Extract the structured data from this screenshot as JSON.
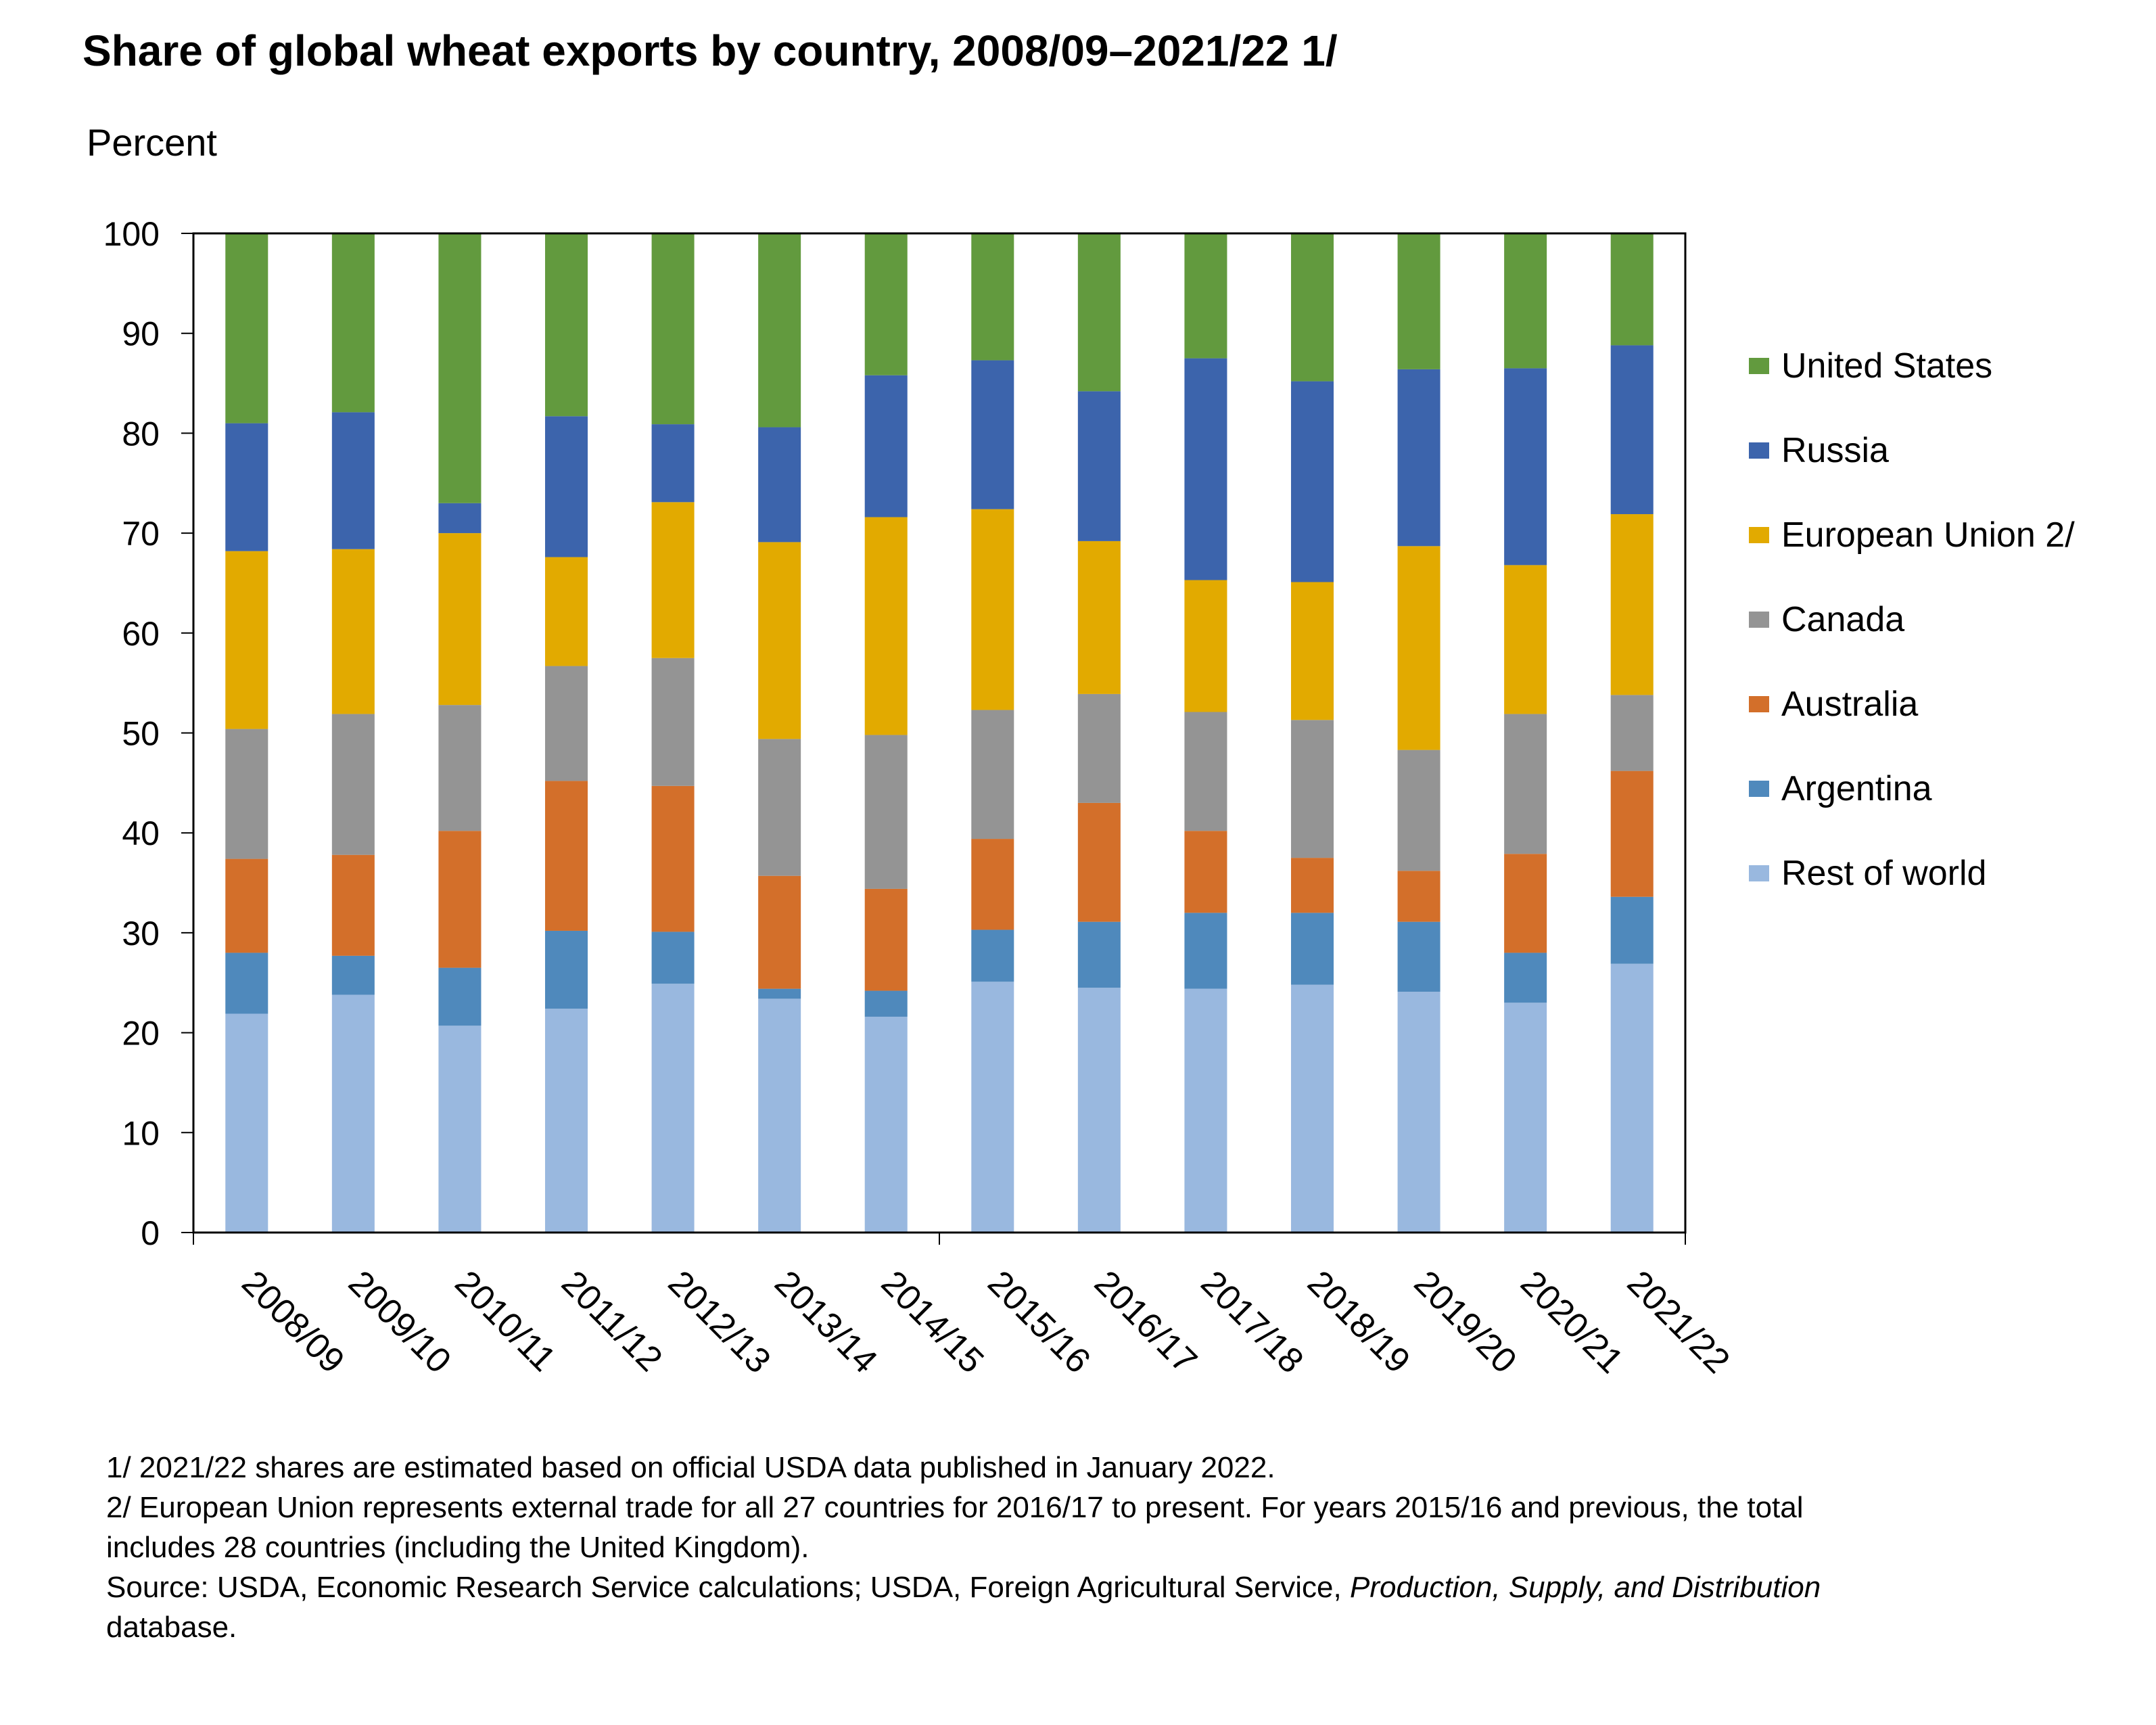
{
  "chart_data": {
    "type": "bar",
    "stacked": true,
    "title": "Share of global wheat exports by country, 2008/09–2021/22 1/",
    "ylabel": "Percent",
    "xlabel": "",
    "ylim": [
      0,
      100
    ],
    "yticks": [
      0,
      10,
      20,
      30,
      40,
      50,
      60,
      70,
      80,
      90,
      100
    ],
    "grid": false,
    "legend_position": "right",
    "categories": [
      "2008/09",
      "2009/10",
      "2010/11",
      "2011/12",
      "2012/13",
      "2013/14",
      "2014/15",
      "2015/16",
      "2016/17",
      "2017/18",
      "2018/19",
      "2019/20",
      "2020/21",
      "2021/22"
    ],
    "series": [
      {
        "name": "Rest of world",
        "color": "#99B8DF",
        "values": [
          21.9,
          23.8,
          20.7,
          22.4,
          24.9,
          23.4,
          21.6,
          25.1,
          24.5,
          24.4,
          24.8,
          24.1,
          23.0,
          26.9
        ]
      },
      {
        "name": "Argentina",
        "color": "#4F89BC",
        "values": [
          6.1,
          3.9,
          5.8,
          7.8,
          5.2,
          1.0,
          2.6,
          5.2,
          6.6,
          7.6,
          7.2,
          7.0,
          5.0,
          6.7
        ]
      },
      {
        "name": "Australia",
        "color": "#D36F2A",
        "values": [
          9.4,
          10.1,
          13.7,
          15.0,
          14.6,
          11.3,
          10.2,
          9.1,
          11.9,
          8.2,
          5.5,
          5.1,
          9.9,
          12.6
        ]
      },
      {
        "name": "Canada",
        "color": "#949494",
        "values": [
          13.0,
          14.1,
          12.6,
          11.5,
          12.8,
          13.7,
          15.4,
          12.9,
          10.9,
          11.9,
          13.8,
          12.1,
          14.0,
          7.6
        ]
      },
      {
        "name": "European Union 2/",
        "color": "#E2AA00",
        "values": [
          17.8,
          16.5,
          17.2,
          10.9,
          15.6,
          19.7,
          21.8,
          20.1,
          15.3,
          13.2,
          13.8,
          20.4,
          14.9,
          18.1
        ]
      },
      {
        "name": "Russia",
        "color": "#3C64AC",
        "values": [
          12.8,
          13.7,
          3.0,
          14.1,
          7.8,
          11.5,
          14.2,
          14.9,
          15.0,
          22.2,
          20.1,
          17.7,
          19.7,
          16.9
        ]
      },
      {
        "name": "United States",
        "color": "#629A3E",
        "values": [
          19.0,
          17.9,
          27.0,
          18.3,
          19.1,
          19.4,
          14.2,
          12.7,
          15.8,
          12.5,
          14.8,
          13.6,
          13.5,
          11.2
        ]
      }
    ],
    "legend_order": [
      "United States",
      "Russia",
      "European Union 2/",
      "Canada",
      "Australia",
      "Argentina",
      "Rest of world"
    ]
  },
  "footnotes": {
    "note1": "1/ 2021/22 shares are estimated based on official USDA data published in January 2022.",
    "note2_line1": "2/ European Union represents external trade for all 27 countries for 2016/17 to present.  For years 2015/16 and previous, the total",
    "note2_line2": "includes 28 countries (including the United Kingdom).",
    "source_prefix": "Source: USDA, Economic Research Service calculations; USDA, Foreign Agricultural Service, ",
    "source_italic": "Production, Supply, and Distribution",
    "source_suffix": "database."
  }
}
